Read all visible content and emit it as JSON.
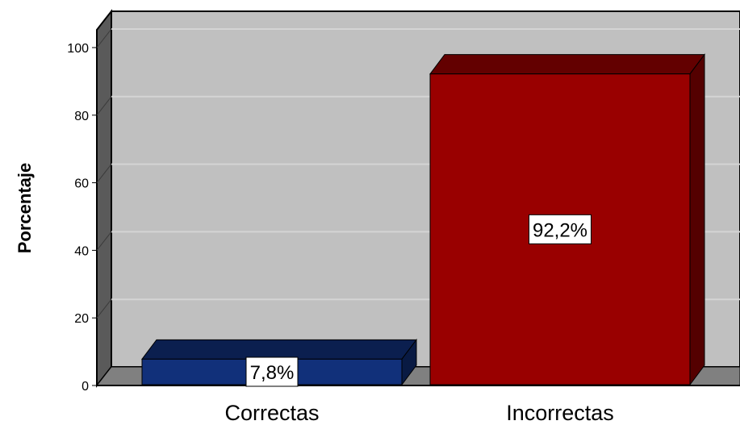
{
  "chart_data": {
    "type": "bar",
    "title": "",
    "xlabel": "",
    "ylabel": "Porcentaje",
    "categories": [
      "Correctas",
      "Incorrectas"
    ],
    "values": [
      7.8,
      92.2
    ],
    "data_labels": [
      "7,8%",
      "92,2%"
    ],
    "ylim": [
      0,
      100
    ],
    "yticks": [
      "0",
      "20",
      "40",
      "60",
      "80",
      "100"
    ],
    "grid": true,
    "style": "3d",
    "colors": {
      "Correctas": "#11307a",
      "Incorrectas": "#990000",
      "plot_background": "#c0c0c0",
      "floor": "#808080",
      "gridline": "#d4d4d4"
    }
  }
}
